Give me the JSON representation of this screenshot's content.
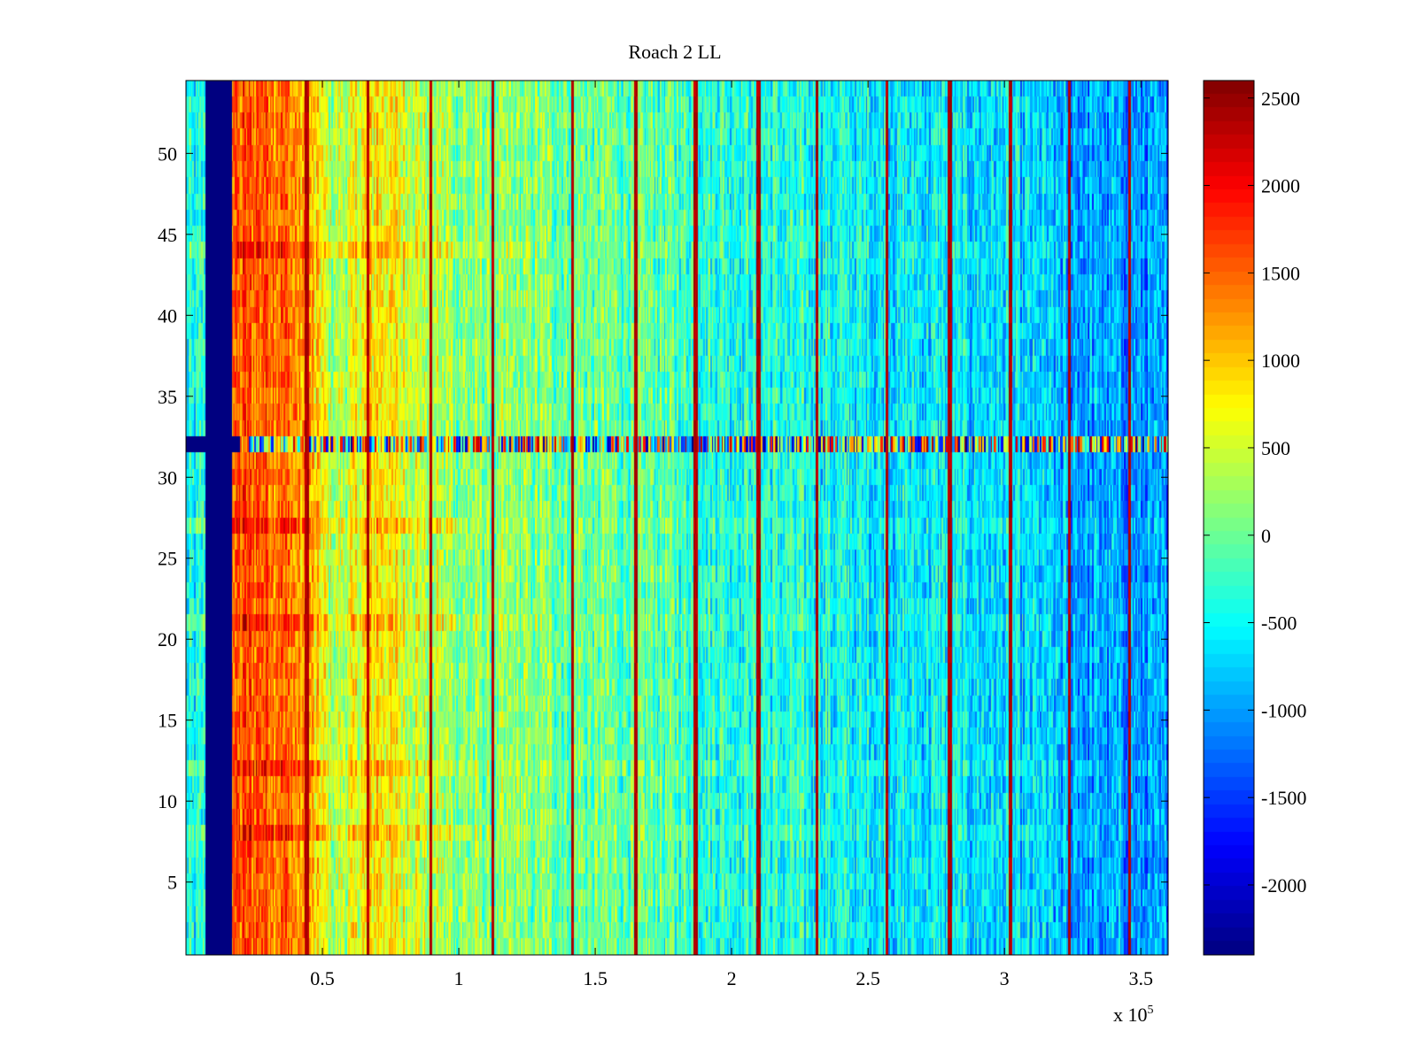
{
  "chart_data": {
    "type": "heatmap",
    "title": "Roach 2 LL",
    "xlabel": "",
    "ylabel": "",
    "x_multiplier_label": "x 10",
    "x_multiplier_exponent": "5",
    "xlim": [
      0,
      3.6
    ],
    "ylim": [
      0.5,
      54.5
    ],
    "x_ticks": [
      0.5,
      1,
      1.5,
      2,
      2.5,
      3,
      3.5
    ],
    "x_tick_labels": [
      "0.5",
      "1",
      "1.5",
      "2",
      "2.5",
      "3",
      "3.5"
    ],
    "y_ticks": [
      5,
      10,
      15,
      20,
      25,
      30,
      35,
      40,
      45,
      50
    ],
    "y_tick_labels": [
      "5",
      "10",
      "15",
      "20",
      "25",
      "30",
      "35",
      "40",
      "45",
      "50"
    ],
    "n_rows": 54,
    "colormap": "jet",
    "clim": [
      -2400,
      2600
    ],
    "colorbar": {
      "ticks": [
        -2000,
        -1500,
        -1000,
        -500,
        0,
        500,
        1000,
        1500,
        2000,
        2500
      ],
      "tick_labels": [
        "-2000",
        "-1500",
        "-1000",
        "-500",
        "0",
        "500",
        "1000",
        "1500",
        "2000",
        "2500"
      ]
    },
    "background_trend": {
      "x": [
        0.0,
        0.05,
        0.17,
        0.3,
        0.45,
        0.55,
        0.7,
        0.8,
        1.0,
        1.5,
        2.0,
        2.5,
        3.0,
        3.3,
        3.6
      ],
      "value": [
        -500,
        -500,
        1500,
        1650,
        1100,
        250,
        900,
        600,
        150,
        0,
        -300,
        -550,
        -700,
        -950,
        -1100
      ]
    },
    "low_band": {
      "x_range": [
        0.07,
        0.17
      ],
      "value": -2400
    },
    "bright_vertical_lines_x": [
      0.445,
      0.67,
      0.9,
      1.125,
      1.42,
      1.65,
      1.87,
      2.1,
      2.315,
      2.57,
      2.8,
      3.025,
      3.24,
      3.46
    ],
    "bright_line_value": 2500,
    "bright_rows": [
      8,
      12,
      21,
      27,
      44
    ],
    "anomalous_row": {
      "row": 32,
      "description_values_range": [
        -2400,
        2400
      ]
    }
  }
}
